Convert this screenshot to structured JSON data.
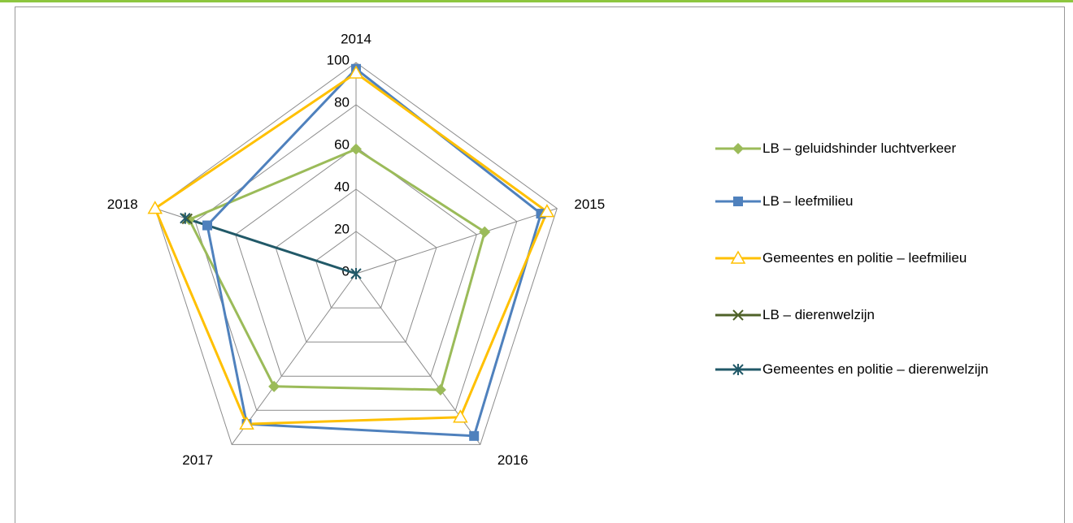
{
  "chart_data": {
    "type": "radar",
    "categories": [
      "2014",
      "2015",
      "2016",
      "2017",
      "2018"
    ],
    "ylim": [
      0,
      100
    ],
    "yticks": [
      0,
      20,
      40,
      60,
      80,
      100
    ],
    "grid": true,
    "series": [
      {
        "name": "LB – geluidshinder luchtverkeer",
        "color": "#9bbb59",
        "marker": "diamond",
        "values": [
          59,
          64,
          68,
          66,
          83
        ]
      },
      {
        "name": "LB – leefmilieu",
        "color": "#4f81bd",
        "marker": "square",
        "values": [
          97,
          92,
          95,
          88,
          74
        ]
      },
      {
        "name": "Gemeentes en politie – leefmilieu",
        "color": "#ffc000",
        "marker": "triangle",
        "values": [
          95,
          95,
          84,
          88,
          100
        ]
      },
      {
        "name": "LB – dierenwelzijn",
        "color": "#4f6228",
        "marker": "x",
        "values": [
          null,
          null,
          null,
          null,
          84
        ]
      },
      {
        "name": "Gemeentes en politie – dierenwelzijn",
        "color": "#215968",
        "marker": "star",
        "values": [
          0,
          null,
          null,
          null,
          85
        ]
      }
    ]
  }
}
